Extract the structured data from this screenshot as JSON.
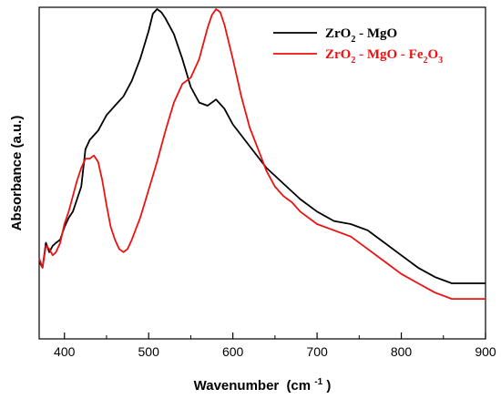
{
  "chart_data": {
    "type": "line",
    "xlabel": "Wavenumber",
    "xlabel_unit": "(cm",
    "xlabel_unit_sup": "-1",
    "xlabel_unit_close": ")",
    "ylabel": "Absorbance (a.u.)",
    "xlim": [
      370,
      900
    ],
    "ylim": [
      0,
      1
    ],
    "x_ticks": [
      400,
      500,
      600,
      700,
      800,
      900
    ],
    "y_ticks_labeled": false,
    "grid": false,
    "legend_position": "top-right",
    "legend": {
      "entries": [
        {
          "color": "#000000",
          "parts": [
            {
              "text": "ZrO",
              "style": "normal"
            },
            {
              "text": "2",
              "style": "sub"
            },
            {
              "text": " - MgO",
              "style": "normal"
            }
          ]
        },
        {
          "color": "#ee1111",
          "parts": [
            {
              "text": "ZrO",
              "style": "normal"
            },
            {
              "text": "2",
              "style": "sub"
            },
            {
              "text": " - MgO - Fe",
              "style": "normal"
            },
            {
              "text": "2",
              "style": "sub"
            },
            {
              "text": "O",
              "style": "normal"
            },
            {
              "text": "3",
              "style": "sub"
            }
          ]
        }
      ]
    },
    "series": [
      {
        "name": "ZrO2 - MgO",
        "color": "#000000",
        "points": [
          [
            370,
            0.19
          ],
          [
            374,
            0.17
          ],
          [
            378,
            0.25
          ],
          [
            382,
            0.22
          ],
          [
            386,
            0.24
          ],
          [
            390,
            0.25
          ],
          [
            395,
            0.26
          ],
          [
            400,
            0.3
          ],
          [
            405,
            0.33
          ],
          [
            410,
            0.35
          ],
          [
            415,
            0.39
          ],
          [
            420,
            0.43
          ],
          [
            425,
            0.55
          ],
          [
            430,
            0.58
          ],
          [
            440,
            0.61
          ],
          [
            450,
            0.66
          ],
          [
            460,
            0.69
          ],
          [
            470,
            0.72
          ],
          [
            480,
            0.77
          ],
          [
            490,
            0.84
          ],
          [
            500,
            0.93
          ],
          [
            505,
            0.985
          ],
          [
            510,
            1.0
          ],
          [
            515,
            0.99
          ],
          [
            520,
            0.97
          ],
          [
            530,
            0.92
          ],
          [
            540,
            0.84
          ],
          [
            550,
            0.75
          ],
          [
            560,
            0.7
          ],
          [
            570,
            0.69
          ],
          [
            580,
            0.71
          ],
          [
            590,
            0.68
          ],
          [
            600,
            0.63
          ],
          [
            620,
            0.56
          ],
          [
            640,
            0.49
          ],
          [
            660,
            0.44
          ],
          [
            680,
            0.39
          ],
          [
            700,
            0.35
          ],
          [
            720,
            0.32
          ],
          [
            740,
            0.31
          ],
          [
            760,
            0.29
          ],
          [
            780,
            0.25
          ],
          [
            800,
            0.21
          ],
          [
            820,
            0.17
          ],
          [
            840,
            0.14
          ],
          [
            860,
            0.12
          ],
          [
            880,
            0.12
          ],
          [
            900,
            0.12
          ]
        ]
      },
      {
        "name": "ZrO2 - MgO - Fe2O3",
        "color": "#ee1111",
        "points": [
          [
            370,
            0.2
          ],
          [
            374,
            0.17
          ],
          [
            378,
            0.24
          ],
          [
            382,
            0.23
          ],
          [
            386,
            0.21
          ],
          [
            390,
            0.22
          ],
          [
            395,
            0.25
          ],
          [
            400,
            0.31
          ],
          [
            405,
            0.35
          ],
          [
            410,
            0.4
          ],
          [
            415,
            0.45
          ],
          [
            420,
            0.49
          ],
          [
            425,
            0.52
          ],
          [
            430,
            0.52
          ],
          [
            435,
            0.53
          ],
          [
            440,
            0.51
          ],
          [
            445,
            0.45
          ],
          [
            450,
            0.37
          ],
          [
            455,
            0.3
          ],
          [
            460,
            0.26
          ],
          [
            465,
            0.23
          ],
          [
            470,
            0.22
          ],
          [
            475,
            0.23
          ],
          [
            480,
            0.26
          ],
          [
            490,
            0.33
          ],
          [
            500,
            0.42
          ],
          [
            510,
            0.51
          ],
          [
            520,
            0.61
          ],
          [
            530,
            0.7
          ],
          [
            540,
            0.76
          ],
          [
            545,
            0.77
          ],
          [
            550,
            0.78
          ],
          [
            560,
            0.84
          ],
          [
            570,
            0.94
          ],
          [
            575,
            0.98
          ],
          [
            580,
            1.0
          ],
          [
            585,
            0.99
          ],
          [
            590,
            0.95
          ],
          [
            600,
            0.84
          ],
          [
            610,
            0.72
          ],
          [
            620,
            0.62
          ],
          [
            630,
            0.55
          ],
          [
            640,
            0.48
          ],
          [
            650,
            0.43
          ],
          [
            660,
            0.4
          ],
          [
            665,
            0.39
          ],
          [
            670,
            0.38
          ],
          [
            680,
            0.35
          ],
          [
            700,
            0.31
          ],
          [
            720,
            0.29
          ],
          [
            740,
            0.27
          ],
          [
            760,
            0.23
          ],
          [
            780,
            0.19
          ],
          [
            800,
            0.15
          ],
          [
            820,
            0.12
          ],
          [
            840,
            0.09
          ],
          [
            860,
            0.07
          ],
          [
            880,
            0.07
          ],
          [
            900,
            0.07
          ]
        ]
      }
    ]
  }
}
